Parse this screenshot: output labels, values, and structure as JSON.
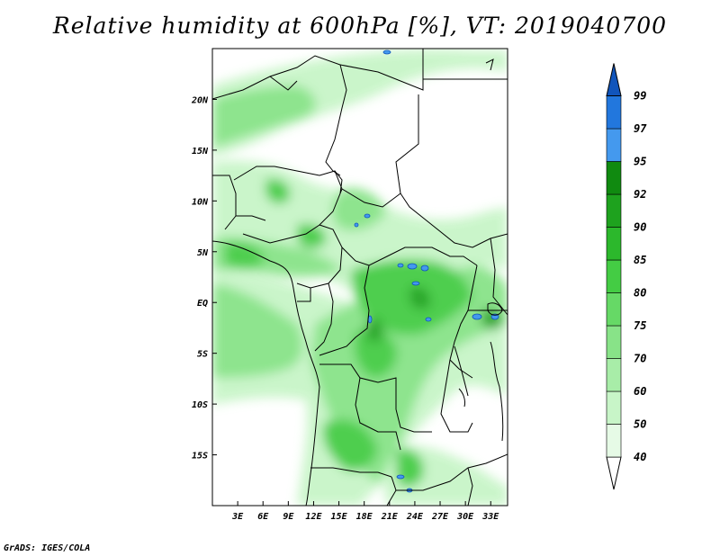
{
  "title": "Relative humidity at 600hPa [%], VT: 2019040700",
  "credit": "GrADS: IGES/COLA",
  "map": {
    "lon_range": [
      0,
      35
    ],
    "lat_range": [
      -20,
      25
    ],
    "x_ticks": [
      {
        "value": 3,
        "label": "3E"
      },
      {
        "value": 6,
        "label": "6E"
      },
      {
        "value": 9,
        "label": "9E"
      },
      {
        "value": 12,
        "label": "12E"
      },
      {
        "value": 15,
        "label": "15E"
      },
      {
        "value": 18,
        "label": "18E"
      },
      {
        "value": 21,
        "label": "21E"
      },
      {
        "value": 24,
        "label": "24E"
      },
      {
        "value": 27,
        "label": "27E"
      },
      {
        "value": 30,
        "label": "30E"
      },
      {
        "value": 33,
        "label": "33E"
      }
    ],
    "y_ticks": [
      {
        "value": 20,
        "label": "20N"
      },
      {
        "value": 15,
        "label": "15N"
      },
      {
        "value": 10,
        "label": "10N"
      },
      {
        "value": 5,
        "label": "5N"
      },
      {
        "value": 0,
        "label": "EQ"
      },
      {
        "value": -5,
        "label": "5S"
      },
      {
        "value": -10,
        "label": "10S"
      },
      {
        "value": -15,
        "label": "15S"
      }
    ]
  },
  "colorbar": {
    "levels": [
      "40",
      "50",
      "60",
      "70",
      "75",
      "80",
      "85",
      "90",
      "92",
      "95",
      "97",
      "99"
    ],
    "colors": [
      "#ffffff",
      "#e6fae6",
      "#c8f5c8",
      "#a8eda8",
      "#88e388",
      "#66d966",
      "#44cc44",
      "#2cb82c",
      "#1ea21e",
      "#108a10",
      "#4499ee",
      "#2277dd",
      "#1155bb"
    ]
  },
  "colors": {
    "land_outline": "#000000",
    "rh_light": "#c8f5c8",
    "rh_mid": "#66d966",
    "rh_dark": "#1ea21e",
    "rh_high": "#4499ee"
  }
}
